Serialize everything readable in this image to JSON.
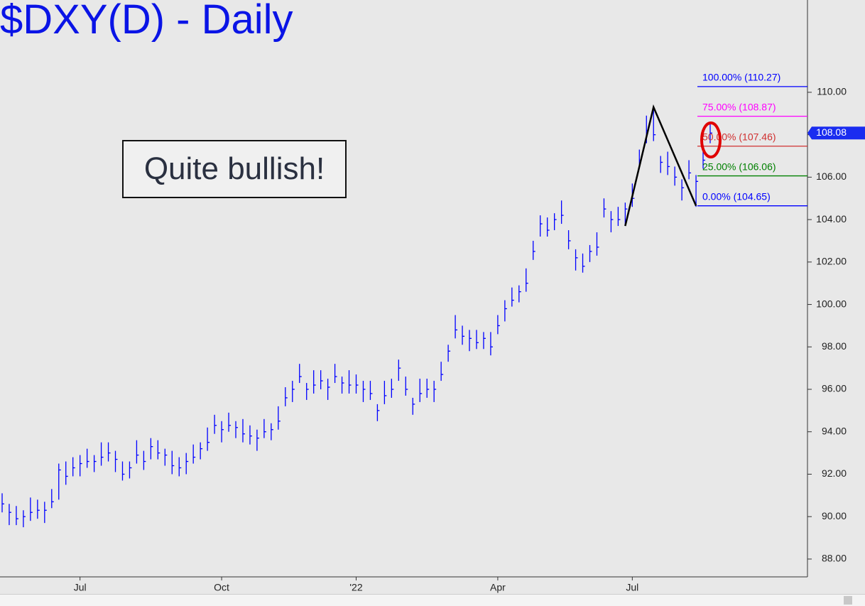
{
  "chart_data": {
    "type": "ohlc",
    "title": "$DXY(D) - Daily",
    "annotation": "Quite bullish!",
    "color": "#0000ff",
    "categories": [
      null,
      null,
      null,
      null,
      null,
      null,
      null,
      null,
      null,
      null,
      null,
      "Jul",
      null,
      null,
      null,
      null,
      null,
      null,
      null,
      null,
      null,
      null,
      null,
      null,
      null,
      null,
      null,
      null,
      null,
      null,
      null,
      "Oct",
      null,
      null,
      null,
      null,
      null,
      null,
      null,
      null,
      null,
      null,
      null,
      null,
      null,
      null,
      null,
      null,
      null,
      null,
      "'22",
      null,
      null,
      null,
      null,
      null,
      null,
      null,
      null,
      null,
      null,
      null,
      null,
      null,
      null,
      null,
      null,
      null,
      null,
      null,
      "Apr",
      null,
      null,
      null,
      null,
      null,
      null,
      null,
      null,
      null,
      null,
      null,
      null,
      null,
      null,
      null,
      null,
      null,
      null,
      "Jul",
      null,
      null,
      null,
      null,
      null,
      null,
      null,
      null,
      null,
      null,
      null
    ],
    "high": [
      91.1,
      90.6,
      90.5,
      90.3,
      90.9,
      90.8,
      90.7,
      91.3,
      92.5,
      92.6,
      92.8,
      92.9,
      93.2,
      92.9,
      93.5,
      93.5,
      93.1,
      92.6,
      92.6,
      93.6,
      93.1,
      93.7,
      93.6,
      93.2,
      93.1,
      92.8,
      93.0,
      93.4,
      93.5,
      94.2,
      94.8,
      94.5,
      94.9,
      94.5,
      94.6,
      94.3,
      94.1,
      94.6,
      94.4,
      95.2,
      96.1,
      96.4,
      97.2,
      96.3,
      96.9,
      96.9,
      96.5,
      97.2,
      96.6,
      96.9,
      96.7,
      96.4,
      96.4,
      95.3,
      96.4,
      96.5,
      97.4,
      96.6,
      95.6,
      96.5,
      96.5,
      96.4,
      97.3,
      98.1,
      99.5,
      99.0,
      98.8,
      98.8,
      98.7,
      98.7,
      99.5,
      100.2,
      100.8,
      100.9,
      101.7,
      103.0,
      104.2,
      104.1,
      104.3,
      104.9,
      103.5,
      102.6,
      102.4,
      102.8,
      103.4,
      105.0,
      104.4,
      104.6,
      104.8,
      105.7,
      107.3,
      108.9,
      109.3,
      107.0,
      107.2,
      106.5,
      105.9,
      106.8,
      106.1,
      107.5,
      108.5
    ],
    "low": [
      90.2,
      89.6,
      89.6,
      89.5,
      89.8,
      89.9,
      89.7,
      90.4,
      90.8,
      91.5,
      91.9,
      91.9,
      92.3,
      92.1,
      92.4,
      92.6,
      92.1,
      91.7,
      91.8,
      92.5,
      92.2,
      92.7,
      92.7,
      92.4,
      92.0,
      91.9,
      92.0,
      92.5,
      92.7,
      93.1,
      93.9,
      93.5,
      94.0,
      93.7,
      93.5,
      93.4,
      93.1,
      93.7,
      93.6,
      94.1,
      95.2,
      95.4,
      96.3,
      95.5,
      95.8,
      96.0,
      95.5,
      96.3,
      95.8,
      95.8,
      95.8,
      95.4,
      95.5,
      94.5,
      95.3,
      95.6,
      96.4,
      95.7,
      94.8,
      95.4,
      95.6,
      95.4,
      96.4,
      97.3,
      98.4,
      98.1,
      97.8,
      97.9,
      97.9,
      97.6,
      98.6,
      99.2,
      99.9,
      100.1,
      100.6,
      102.1,
      103.2,
      103.2,
      103.5,
      103.8,
      102.6,
      101.6,
      101.5,
      102.0,
      102.3,
      104.1,
      103.4,
      103.7,
      103.7,
      104.6,
      106.4,
      107.6,
      107.7,
      106.2,
      106.1,
      105.6,
      104.9,
      105.9,
      104.6,
      106.4,
      107.6
    ],
    "close": [
      90.6,
      90.2,
      89.9,
      90.0,
      90.2,
      90.3,
      90.3,
      90.7,
      92.2,
      91.9,
      92.3,
      92.5,
      92.6,
      92.6,
      92.8,
      93.0,
      92.7,
      92.0,
      92.3,
      92.9,
      92.6,
      93.3,
      93.0,
      92.9,
      92.4,
      92.3,
      92.6,
      92.8,
      93.2,
      93.5,
      94.3,
      94.1,
      94.3,
      94.2,
      93.9,
      93.8,
      93.7,
      94.0,
      94.1,
      94.5,
      95.6,
      96.0,
      96.6,
      96.0,
      96.2,
      96.4,
      96.1,
      96.6,
      96.3,
      96.2,
      96.2,
      96.0,
      95.8,
      95.0,
      95.7,
      96.0,
      97.0,
      96.0,
      95.3,
      95.8,
      96.0,
      96.0,
      96.7,
      97.8,
      98.8,
      98.5,
      98.4,
      98.2,
      98.4,
      98.0,
      99.0,
      99.8,
      100.2,
      100.6,
      101.0,
      102.5,
      103.8,
      103.5,
      104.0,
      104.2,
      103.0,
      102.2,
      101.8,
      102.5,
      102.7,
      104.5,
      104.0,
      104.0,
      104.5,
      105.0,
      106.8,
      108.2,
      108.0,
      106.7,
      106.5,
      106.0,
      105.5,
      106.2,
      105.8,
      106.8,
      108.08
    ],
    "ylim": [
      87.16,
      114.35
    ],
    "yticks": [
      {
        "value": 88,
        "label": "88.00"
      },
      {
        "value": 90,
        "label": "90.00"
      },
      {
        "value": 92,
        "label": "92.00"
      },
      {
        "value": 94,
        "label": "94.00"
      },
      {
        "value": 96,
        "label": "96.00"
      },
      {
        "value": 98,
        "label": "98.00"
      },
      {
        "value": 100,
        "label": "100.00"
      },
      {
        "value": 102,
        "label": "102.00"
      },
      {
        "value": 104,
        "label": "104.00"
      },
      {
        "value": 106,
        "label": "106.00"
      },
      {
        "value": 108,
        "label": "108.00"
      },
      {
        "value": 110,
        "label": "110.00"
      }
    ],
    "last_price": {
      "value": 108.08,
      "label": "108.08"
    },
    "pattern": {
      "x": [
        88,
        92,
        98
      ],
      "values": [
        103.7,
        109.3,
        104.65
      ],
      "color": "#000000"
    },
    "levels": [
      {
        "value": 110.27,
        "label": "100.00% (110.27)",
        "color": "#0000ff"
      },
      {
        "value": 108.87,
        "label": "75.00% (108.87)",
        "color": "#ff00ff"
      },
      {
        "value": 107.46,
        "label": "50.00% (107.46)",
        "color": "#d03030"
      },
      {
        "value": 106.06,
        "label": "25.00% (106.06)",
        "color": "#008000"
      },
      {
        "value": 104.65,
        "label": "0.00% (104.65)",
        "color": "#0000ff"
      }
    ]
  }
}
